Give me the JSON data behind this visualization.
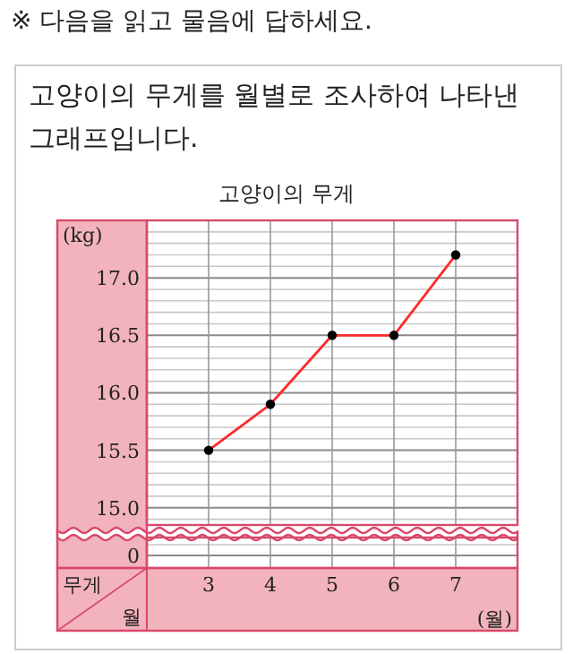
{
  "chart_data": {
    "type": "line",
    "title": "고양이의 무게",
    "xlabel": "(월)",
    "ylabel": "(kg)",
    "annotations": [
      "※ 다음을 읽고 물음에 답하세요.",
      "고양이의 무게를 월별로 조사하여 나타낸 그래프입니다.",
      "무게",
      "월",
      "0"
    ],
    "x": [
      3,
      4,
      5,
      6,
      7
    ],
    "xlim": [
      2,
      8
    ],
    "xticks": [
      3,
      4,
      5,
      6,
      7
    ],
    "ylim": [
      14.85,
      17.5
    ],
    "yticks": [
      {
        "value": 15,
        "label": "15.0"
      },
      {
        "value": 15.5,
        "label": "15.5"
      },
      {
        "value": 16,
        "label": "16.0"
      },
      {
        "value": 16.5,
        "label": "16.5"
      },
      {
        "value": 17,
        "label": "17.0"
      }
    ],
    "series": [
      {
        "color": "#ff2a2a",
        "values": [
          15.5,
          15.9,
          16.5,
          16.5,
          17.2
        ]
      }
    ],
    "grid": true,
    "marker": "circle",
    "line_style": "solid"
  }
}
